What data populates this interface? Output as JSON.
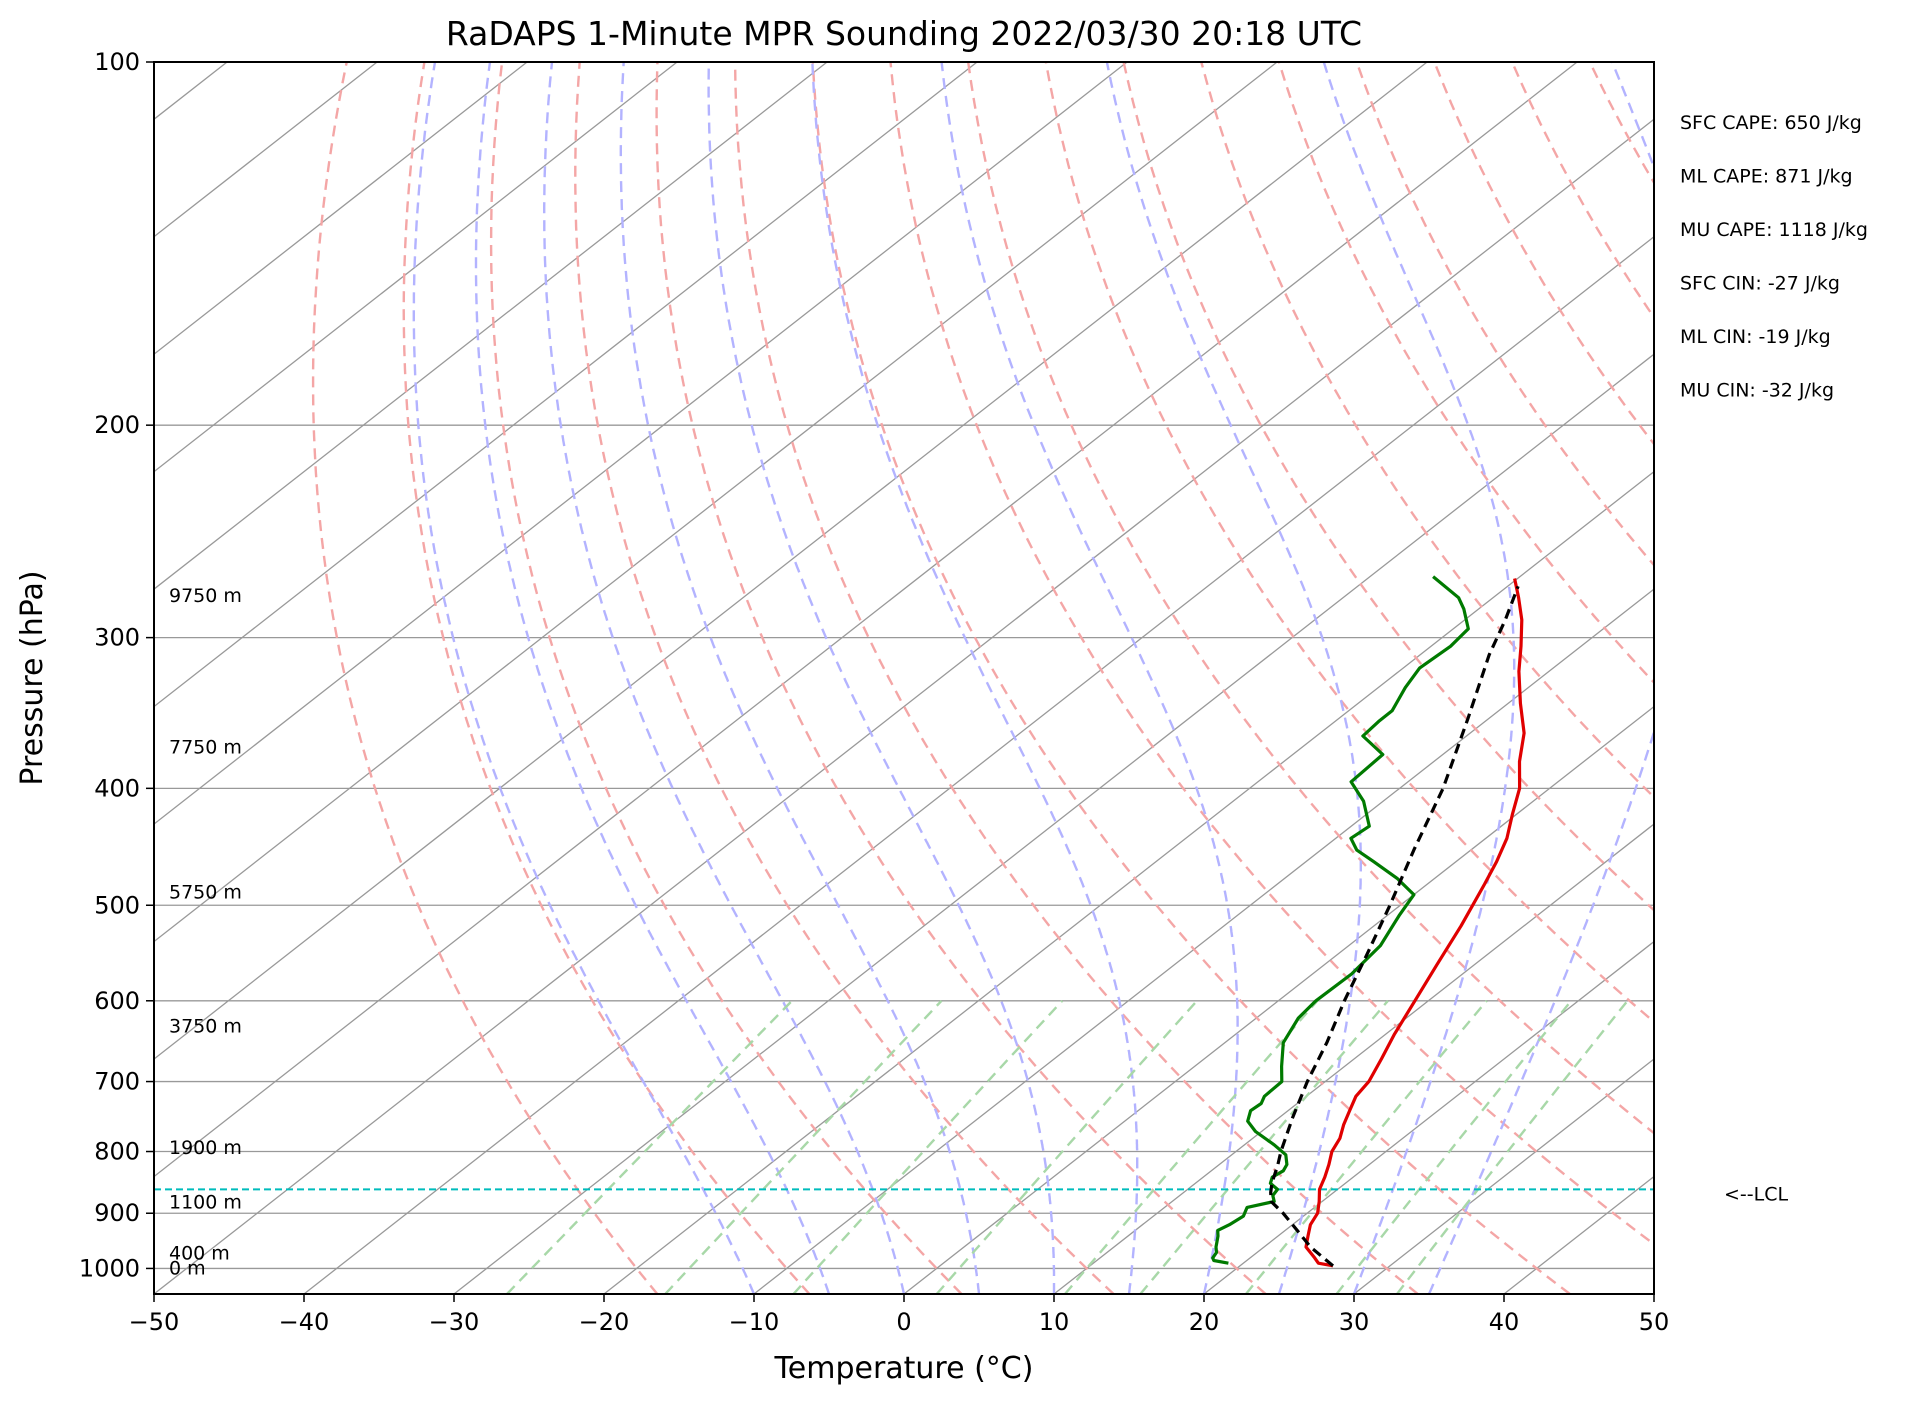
{
  "chart_data": {
    "type": "line",
    "title": "RaDAPS 1-Minute MPR Sounding 2022/03/30 20:18 UTC",
    "xlabel": "Temperature (°C)",
    "ylabel": "Pressure (hPa)",
    "xlim": [
      -50,
      50
    ],
    "ylim": [
      1050,
      100
    ],
    "log_y": true,
    "grid": true,
    "x_ticks": [
      -50,
      -40,
      -30,
      -20,
      -10,
      0,
      10,
      20,
      30,
      40,
      50
    ],
    "x_tick_labels": [
      "−50",
      "−40",
      "−30",
      "−20",
      "−10",
      "0",
      "10",
      "20",
      "30",
      "40",
      "50"
    ],
    "y_ticks": [
      100,
      200,
      300,
      400,
      500,
      600,
      700,
      800,
      900,
      1000
    ],
    "y_tick_labels": [
      "100",
      "200",
      "300",
      "400",
      "500",
      "600",
      "700",
      "800",
      "900",
      "1000"
    ],
    "skew_deg_per_log_unit": 44.6,
    "lines": {
      "isotherm_color": "#999999",
      "dry_adiabat_color": "#f4a6a6",
      "moist_adiabat_color": "#b3b3ff",
      "mixing_ratio_color": "#a8d8a8",
      "lcl_color": "#00bcbc",
      "dry_adiabat_theta_c": [
        -20,
        -10,
        0,
        10,
        20,
        30,
        40,
        50,
        60,
        70,
        80,
        90,
        100,
        110,
        120,
        130,
        140,
        150,
        160,
        170,
        180,
        190
      ],
      "moist_adiabat_tsfc_c": [
        -10,
        -5,
        0,
        5,
        10,
        15,
        20,
        25,
        30,
        35
      ],
      "mixing_ratio_tsfc_c": [
        -27,
        -16.5,
        -8,
        1.5,
        10,
        15,
        22,
        28,
        32
      ]
    },
    "series": [
      {
        "color": "#e00000",
        "points": [
          [
            995,
            26.2
          ],
          [
            990,
            25.0
          ],
          [
            980,
            24.3
          ],
          [
            960,
            22.8
          ],
          [
            940,
            22.0
          ],
          [
            920,
            21.2
          ],
          [
            900,
            20.7
          ],
          [
            880,
            19.8
          ],
          [
            860,
            18.8
          ],
          [
            840,
            18.1
          ],
          [
            820,
            17.3
          ],
          [
            800,
            16.4
          ],
          [
            780,
            15.8
          ],
          [
            760,
            14.9
          ],
          [
            740,
            14.1
          ],
          [
            720,
            13.3
          ],
          [
            700,
            12.9
          ],
          [
            670,
            11.8
          ],
          [
            640,
            10.6
          ],
          [
            600,
            9.1
          ],
          [
            560,
            7.5
          ],
          [
            520,
            5.8
          ],
          [
            480,
            3.8
          ],
          [
            460,
            2.7
          ],
          [
            440,
            1.4
          ],
          [
            420,
            -0.3
          ],
          [
            400,
            -2.0
          ],
          [
            380,
            -4.3
          ],
          [
            360,
            -6.4
          ],
          [
            340,
            -9.2
          ],
          [
            320,
            -12.0
          ],
          [
            305,
            -14.0
          ],
          [
            290,
            -16.2
          ],
          [
            278,
            -18.3
          ],
          [
            268,
            -20.2
          ]
        ]
      },
      {
        "color": "#007a00",
        "points": [
          [
            990,
            19.0
          ],
          [
            985,
            17.8
          ],
          [
            980,
            17.5
          ],
          [
            970,
            17.3
          ],
          [
            960,
            16.8
          ],
          [
            950,
            16.4
          ],
          [
            940,
            16.0
          ],
          [
            930,
            15.5
          ],
          [
            920,
            15.8
          ],
          [
            905,
            16.0
          ],
          [
            890,
            15.5
          ],
          [
            880,
            16.8
          ],
          [
            870,
            16.2
          ],
          [
            860,
            16.0
          ],
          [
            850,
            15.0
          ],
          [
            840,
            14.6
          ],
          [
            830,
            14.8
          ],
          [
            820,
            14.5
          ],
          [
            805,
            13.6
          ],
          [
            790,
            12.0
          ],
          [
            770,
            9.6
          ],
          [
            755,
            8.2
          ],
          [
            740,
            7.5
          ],
          [
            730,
            7.6
          ],
          [
            720,
            7.2
          ],
          [
            700,
            7.1
          ],
          [
            680,
            5.8
          ],
          [
            650,
            3.9
          ],
          [
            620,
            2.8
          ],
          [
            600,
            2.5
          ],
          [
            570,
            2.6
          ],
          [
            540,
            2.1
          ],
          [
            510,
            0.8
          ],
          [
            490,
            0.0
          ],
          [
            475,
            -2.5
          ],
          [
            460,
            -5.5
          ],
          [
            450,
            -7.6
          ],
          [
            440,
            -9.0
          ],
          [
            430,
            -8.8
          ],
          [
            410,
            -11.3
          ],
          [
            395,
            -13.8
          ],
          [
            375,
            -14.0
          ],
          [
            362,
            -16.9
          ],
          [
            352,
            -17.1
          ],
          [
            345,
            -17.1
          ],
          [
            330,
            -18.2
          ],
          [
            318,
            -18.9
          ],
          [
            305,
            -18.7
          ],
          [
            295,
            -19.0
          ],
          [
            284,
            -21.0
          ],
          [
            278,
            -22.3
          ],
          [
            267,
            -25.8
          ]
        ]
      },
      {
        "color": "#000000",
        "dashed": true,
        "points": [
          [
            995,
            26.2
          ],
          [
            960,
            23.1
          ],
          [
            930,
            20.8
          ],
          [
            900,
            18.4
          ],
          [
            880,
            16.6
          ],
          [
            865,
            15.8
          ],
          [
            850,
            15.1
          ],
          [
            820,
            13.9
          ],
          [
            800,
            13.0
          ],
          [
            750,
            10.9
          ],
          [
            700,
            8.8
          ],
          [
            650,
            6.8
          ],
          [
            600,
            4.4
          ],
          [
            550,
            2.0
          ],
          [
            500,
            -0.7
          ],
          [
            450,
            -3.8
          ],
          [
            400,
            -7.1
          ],
          [
            350,
            -11.4
          ],
          [
            310,
            -15.4
          ],
          [
            290,
            -17.3
          ],
          [
            272,
            -19.3
          ]
        ]
      }
    ],
    "annotations": {
      "heights": [
        {
          "label": "9750 m",
          "p": 277
        },
        {
          "label": "7750 m",
          "p": 370
        },
        {
          "label": "5750 m",
          "p": 488
        },
        {
          "label": "3750 m",
          "p": 630
        },
        {
          "label": "1900 m",
          "p": 795
        },
        {
          "label": "1100 m",
          "p": 882
        },
        {
          "label": "400 m",
          "p": 972
        },
        {
          "label": "0 m",
          "p": 1000
        }
      ],
      "lcl": {
        "label": "<--LCL",
        "p": 860
      },
      "indices": [
        "SFC CAPE: 650 J/kg",
        "ML CAPE: 871 J/kg",
        "MU CAPE: 1118 J/kg",
        "SFC CIN: -27 J/kg",
        "ML CIN: -19 J/kg",
        "MU CIN: -32 J/kg"
      ]
    }
  }
}
